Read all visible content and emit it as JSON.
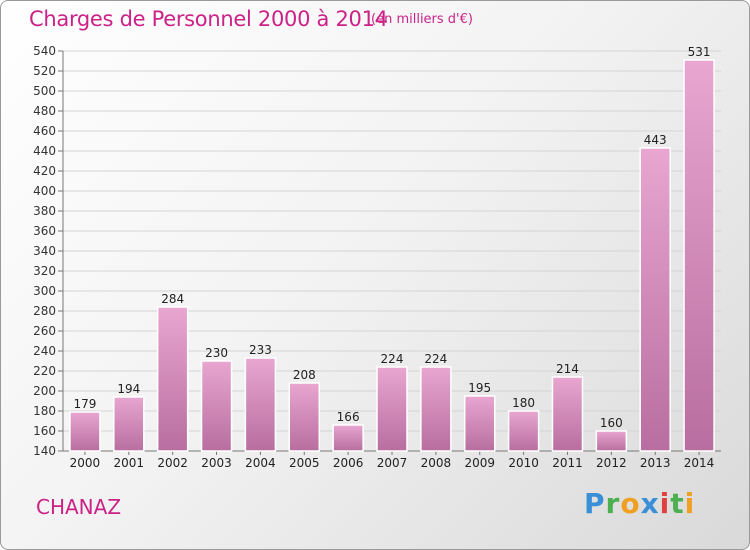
{
  "header": {
    "title": "Charges de Personnel 2000 à 2014",
    "unit": "(en milliers d'€)"
  },
  "footer": {
    "commune": "CHANAZ",
    "logo": "Proxiti"
  },
  "colors": {
    "title": "#cc2288",
    "bar_top": "#e8a6d0",
    "bar_bottom": "#b86ea0"
  },
  "chart_data": {
    "type": "bar",
    "title": "Charges de Personnel 2000 à 2014",
    "subtitle": "(en milliers d'€)",
    "categories": [
      "2000",
      "2001",
      "2002",
      "2003",
      "2004",
      "2005",
      "2006",
      "2007",
      "2008",
      "2009",
      "2010",
      "2011",
      "2012",
      "2013",
      "2014"
    ],
    "values": [
      179,
      194,
      284,
      230,
      233,
      208,
      166,
      224,
      224,
      195,
      180,
      214,
      160,
      443,
      531
    ],
    "ylim": [
      140,
      540
    ],
    "ytick_step": 20,
    "grid": true,
    "data_labels": true
  }
}
